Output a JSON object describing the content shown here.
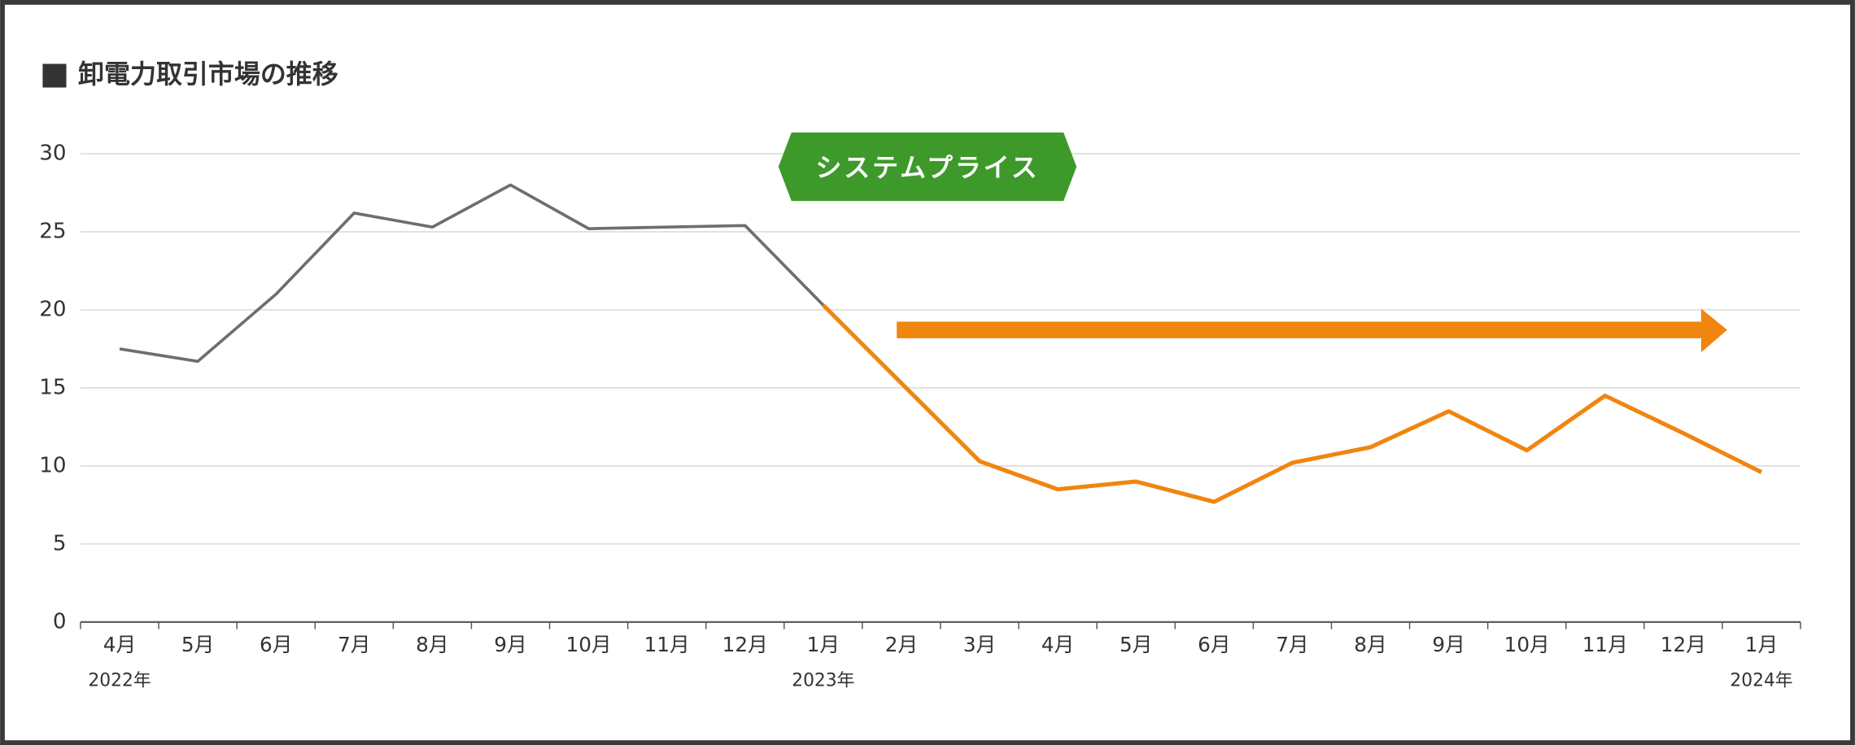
{
  "chart_data": {
    "type": "line",
    "title": "卸電力取引市場の推移",
    "annotation": "システムプライス",
    "categories": [
      "4月",
      "5月",
      "6月",
      "7月",
      "8月",
      "9月",
      "10月",
      "11月",
      "12月",
      "1月",
      "2月",
      "3月",
      "4月",
      "5月",
      "6月",
      "7月",
      "8月",
      "9月",
      "10月",
      "11月",
      "12月",
      "1月"
    ],
    "year_labels": [
      "2022年",
      null,
      null,
      null,
      null,
      null,
      null,
      null,
      null,
      "2023年",
      null,
      null,
      null,
      null,
      null,
      null,
      null,
      null,
      null,
      null,
      null,
      "2024年"
    ],
    "series": [
      {
        "color": "#6e6e6e",
        "values": [
          17.5,
          16.7,
          21.0,
          26.2,
          25.3,
          28.0,
          25.2,
          25.3,
          25.4,
          20.3,
          null,
          null,
          null,
          null,
          null,
          null,
          null,
          null,
          null,
          null,
          null,
          null
        ]
      },
      {
        "color": "#f0850f",
        "values": [
          null,
          null,
          null,
          null,
          null,
          null,
          null,
          null,
          null,
          20.3,
          15.3,
          10.3,
          8.5,
          9.0,
          7.7,
          10.2,
          11.2,
          13.5,
          11.0,
          14.5,
          12.1,
          9.6
        ]
      }
    ],
    "ylim": [
      0,
      30
    ],
    "yticks": [
      0,
      5,
      10,
      15,
      20,
      25,
      30
    ],
    "grid": true,
    "annotation_color": "#3d9a2a",
    "arrow_color": "#f0850f"
  }
}
